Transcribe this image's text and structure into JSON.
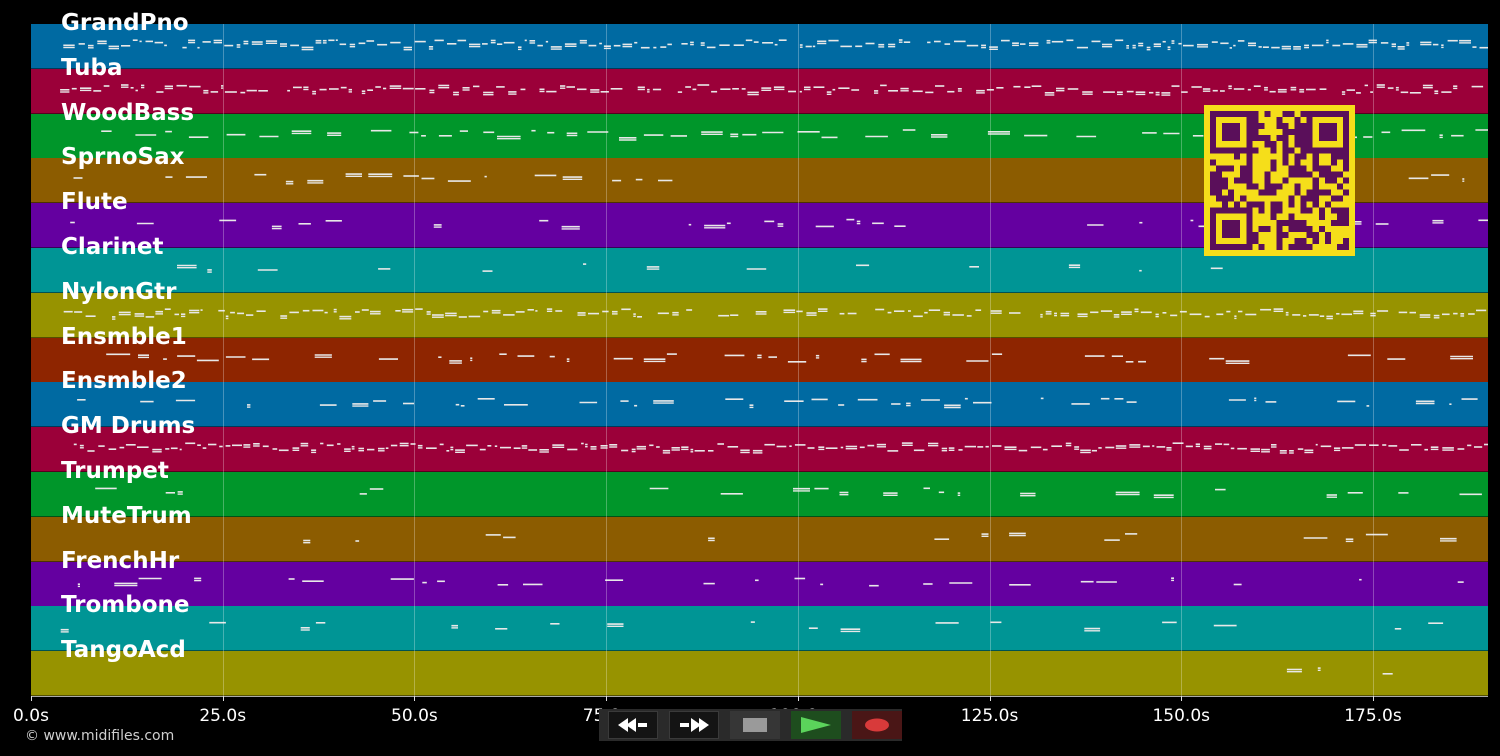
{
  "tracks": [
    {
      "name": "GrandPno",
      "color": "#006aa2"
    },
    {
      "name": "Tuba",
      "color": "#9b0039"
    },
    {
      "name": "WoodBass",
      "color": "#00962a"
    },
    {
      "name": "SprnoSax",
      "color": "#8c5c00"
    },
    {
      "name": "Flute",
      "color": "#6400a0"
    },
    {
      "name": "Clarinet",
      "color": "#009595"
    },
    {
      "name": "NylonGtr",
      "color": "#979300"
    },
    {
      "name": "Ensmble1",
      "color": "#8e2500"
    },
    {
      "name": "Ensmble2",
      "color": "#006aa2"
    },
    {
      "name": "GM Drums",
      "color": "#9b0039"
    },
    {
      "name": "Trumpet",
      "color": "#00962a"
    },
    {
      "name": "MuteTrum",
      "color": "#8c5c00"
    },
    {
      "name": "FrenchHr",
      "color": "#6400a0"
    },
    {
      "name": "Trombone",
      "color": "#009595"
    },
    {
      "name": "TangoAcd",
      "color": "#979300"
    }
  ],
  "x_axis": {
    "unit": "s",
    "max_seconds": 190,
    "ticks": [
      {
        "value": 0,
        "label": "0.0s"
      },
      {
        "value": 25,
        "label": "25.0s"
      },
      {
        "value": 50,
        "label": "50.0s"
      },
      {
        "value": 75,
        "label": "75.0s"
      },
      {
        "value": 100,
        "label": "100.0s"
      },
      {
        "value": 125,
        "label": "125.0s"
      },
      {
        "value": 150,
        "label": "150.0s"
      },
      {
        "value": 175,
        "label": "175.0s"
      }
    ]
  },
  "copyright": "© www.midifiles.com",
  "qr": {
    "background": "#f5de1a",
    "foreground": "#5a0f5a"
  },
  "transport": {
    "rewind_icon": "rewind-icon",
    "fast_forward_icon": "fast-forward-icon",
    "stop_icon": "stop-icon",
    "play_icon": "play-icon",
    "record_icon": "record-icon",
    "play_color": "#5bd35b",
    "record_color": "#d83a3a"
  }
}
